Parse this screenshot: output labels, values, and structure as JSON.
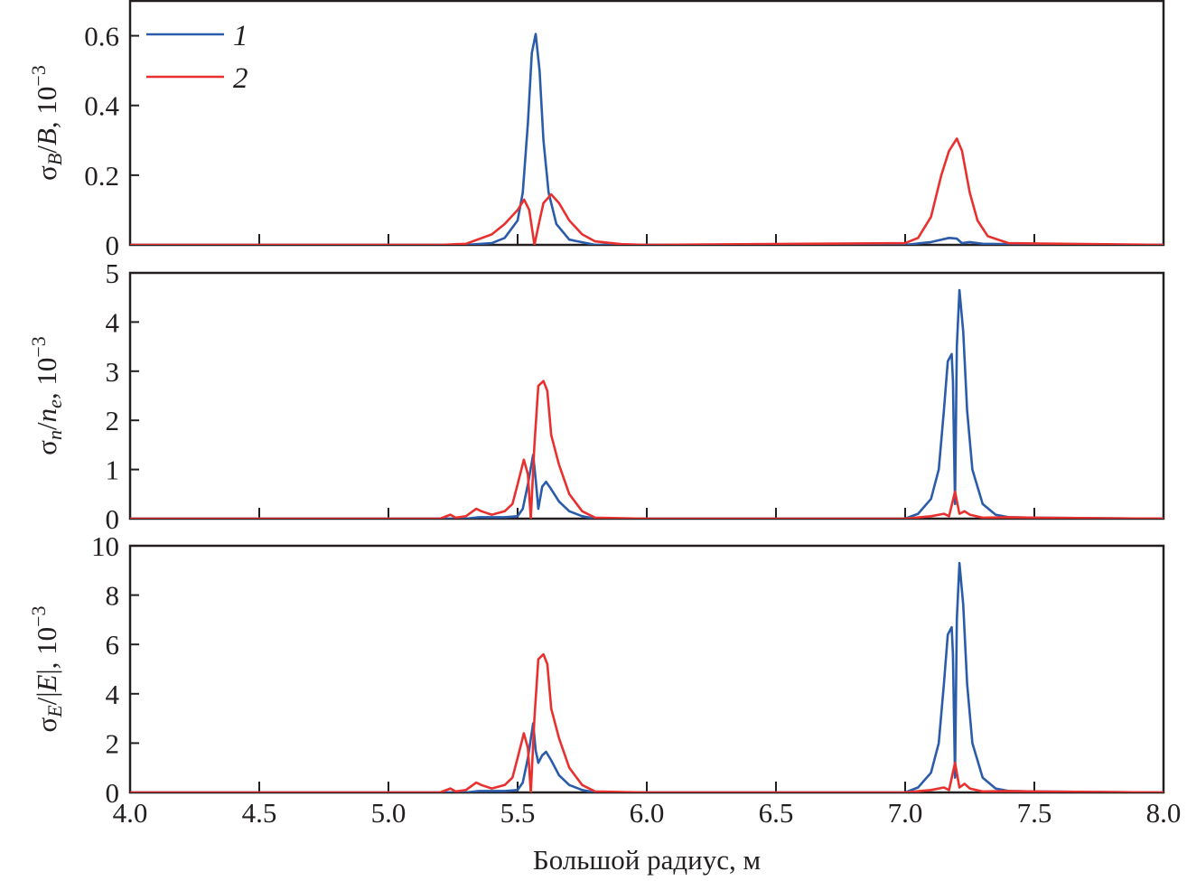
{
  "chart_data": {
    "type": "line",
    "xlabel": "Большой радиус, м",
    "xlim": [
      4.0,
      8.0
    ],
    "xticks": [
      "4.0",
      "4.5",
      "5.0",
      "5.5",
      "6.0",
      "6.5",
      "7.0",
      "7.5",
      "8.0"
    ],
    "legend": {
      "placement": "top-left",
      "entries": [
        {
          "label": "1",
          "color": "#2a5caa"
        },
        {
          "label": "2",
          "color": "#e8312f"
        }
      ]
    },
    "panels": [
      {
        "ylabel_parts": [
          {
            "t": "σ"
          },
          {
            "t": "B",
            "s": "sub-italic"
          },
          {
            "t": "/"
          },
          {
            "t": "B",
            "s": "italic"
          },
          {
            "t": ", 10"
          },
          {
            "t": "−3",
            "s": "sup"
          }
        ],
        "ylim": [
          0,
          0.7
        ],
        "yticks": [
          "0",
          "0.2",
          "0.4",
          "0.6"
        ],
        "series": [
          {
            "name": "1",
            "color": "#2a5caa",
            "x": [
              4.0,
              5.3,
              5.4,
              5.45,
              5.5,
              5.52,
              5.54,
              5.555,
              5.57,
              5.585,
              5.6,
              5.62,
              5.65,
              5.7,
              5.8,
              7.0,
              7.1,
              7.17,
              7.2,
              7.22,
              7.25,
              7.3,
              7.4,
              8.0
            ],
            "y": [
              0,
              0,
              0.005,
              0.02,
              0.07,
              0.15,
              0.35,
              0.55,
              0.605,
              0.5,
              0.3,
              0.15,
              0.06,
              0.015,
              0,
              0,
              0.008,
              0.02,
              0.018,
              0.005,
              0.008,
              0.003,
              0.002,
              0
            ]
          },
          {
            "name": "2",
            "color": "#e8312f",
            "x": [
              4.0,
              5.2,
              5.3,
              5.4,
              5.45,
              5.5,
              5.525,
              5.545,
              5.565,
              5.585,
              5.6,
              5.63,
              5.66,
              5.7,
              5.75,
              5.8,
              5.9,
              6.0,
              7.0,
              7.05,
              7.1,
              7.14,
              7.17,
              7.2,
              7.22,
              7.25,
              7.28,
              7.32,
              7.4,
              8.0
            ],
            "y": [
              0,
              0,
              0.003,
              0.03,
              0.06,
              0.1,
              0.13,
              0.1,
              0.0,
              0.07,
              0.12,
              0.145,
              0.12,
              0.07,
              0.03,
              0.01,
              0.002,
              0,
              0.005,
              0.02,
              0.08,
              0.2,
              0.27,
              0.305,
              0.27,
              0.15,
              0.07,
              0.025,
              0.005,
              0
            ]
          }
        ]
      },
      {
        "ylabel_parts": [
          {
            "t": "σ"
          },
          {
            "t": "n",
            "s": "sub-italic"
          },
          {
            "t": "/"
          },
          {
            "t": "n",
            "s": "italic"
          },
          {
            "t": "e",
            "s": "sub-italic"
          },
          {
            "t": ", 10"
          },
          {
            "t": "−3",
            "s": "sup"
          }
        ],
        "ylim": [
          0,
          5
        ],
        "yticks": [
          "0",
          "1",
          "2",
          "3",
          "4",
          "5"
        ],
        "series": [
          {
            "name": "1",
            "color": "#2a5caa",
            "x": [
              4.0,
              5.3,
              5.35,
              5.45,
              5.5,
              5.52,
              5.54,
              5.56,
              5.57,
              5.58,
              5.595,
              5.61,
              5.63,
              5.66,
              5.7,
              5.75,
              5.8,
              7.0,
              7.05,
              7.1,
              7.13,
              7.15,
              7.165,
              7.18,
              7.185,
              7.193,
              7.2,
              7.21,
              7.225,
              7.24,
              7.26,
              7.3,
              7.35,
              7.4,
              7.5,
              8.0
            ],
            "y": [
              0,
              0,
              0.03,
              0.03,
              0.05,
              0.2,
              0.7,
              1.3,
              0.8,
              0.2,
              0.65,
              0.75,
              0.6,
              0.35,
              0.15,
              0.05,
              0,
              0,
              0.1,
              0.4,
              1.0,
              2.2,
              3.2,
              3.35,
              2.8,
              0.3,
              3.5,
              4.65,
              3.8,
              2.2,
              1.0,
              0.3,
              0.08,
              0.03,
              0.02,
              0
            ]
          },
          {
            "name": "2",
            "color": "#e8312f",
            "x": [
              4.0,
              5.2,
              5.24,
              5.26,
              5.3,
              5.34,
              5.36,
              5.4,
              5.45,
              5.48,
              5.5,
              5.524,
              5.54,
              5.551,
              5.565,
              5.58,
              5.6,
              5.615,
              5.63,
              5.66,
              5.7,
              5.75,
              5.8,
              6.0,
              7.0,
              7.1,
              7.15,
              7.17,
              7.193,
              7.21,
              7.23,
              7.25,
              7.3,
              7.4,
              7.5,
              8.0
            ],
            "y": [
              0,
              0,
              0.08,
              0.02,
              0.05,
              0.2,
              0.15,
              0.08,
              0.15,
              0.3,
              0.7,
              1.2,
              0.9,
              0.0,
              1.5,
              2.7,
              2.8,
              2.6,
              1.7,
              1.1,
              0.5,
              0.15,
              0.02,
              0,
              0,
              0.05,
              0.1,
              0.05,
              0.55,
              0.1,
              0.15,
              0.08,
              0.02,
              0.03,
              0.02,
              0
            ]
          }
        ]
      },
      {
        "ylabel_parts": [
          {
            "t": "σ"
          },
          {
            "t": "E",
            "s": "sub-italic"
          },
          {
            "t": "/|"
          },
          {
            "t": "E",
            "s": "italic"
          },
          {
            "t": "|, 10"
          },
          {
            "t": "−3",
            "s": "sup"
          }
        ],
        "ylim": [
          0,
          10
        ],
        "yticks": [
          "0",
          "2",
          "4",
          "6",
          "8",
          "10"
        ],
        "series": [
          {
            "name": "1",
            "color": "#2a5caa",
            "x": [
              4.0,
              5.3,
              5.35,
              5.45,
              5.5,
              5.52,
              5.54,
              5.56,
              5.57,
              5.58,
              5.595,
              5.61,
              5.63,
              5.66,
              5.7,
              5.75,
              5.8,
              7.0,
              7.05,
              7.1,
              7.13,
              7.15,
              7.165,
              7.18,
              7.185,
              7.193,
              7.2,
              7.21,
              7.225,
              7.24,
              7.26,
              7.3,
              7.35,
              7.4,
              7.5,
              8.0
            ],
            "y": [
              0,
              0,
              0.06,
              0.06,
              0.1,
              0.4,
              1.4,
              2.8,
              1.7,
              1.2,
              1.5,
              1.65,
              1.3,
              0.7,
              0.3,
              0.1,
              0,
              0,
              0.2,
              0.8,
              2.0,
              4.4,
              6.4,
              6.7,
              5.6,
              0.6,
              7.0,
              9.3,
              7.6,
              4.4,
              2.0,
              0.6,
              0.16,
              0.06,
              0.04,
              0
            ]
          },
          {
            "name": "2",
            "color": "#e8312f",
            "x": [
              4.0,
              5.2,
              5.24,
              5.26,
              5.3,
              5.34,
              5.36,
              5.4,
              5.45,
              5.48,
              5.5,
              5.524,
              5.54,
              5.551,
              5.565,
              5.58,
              5.6,
              5.615,
              5.63,
              5.66,
              5.7,
              5.75,
              5.8,
              6.0,
              7.0,
              7.1,
              7.15,
              7.17,
              7.193,
              7.21,
              7.23,
              7.25,
              7.3,
              7.4,
              7.5,
              8.0
            ],
            "y": [
              0,
              0,
              0.16,
              0.04,
              0.1,
              0.4,
              0.3,
              0.16,
              0.3,
              0.6,
              1.4,
              2.4,
              1.8,
              0.0,
              3.0,
              5.4,
              5.6,
              5.2,
              3.4,
              2.2,
              1.0,
              0.3,
              0.04,
              0,
              0,
              0.1,
              0.2,
              0.1,
              1.2,
              0.2,
              0.35,
              0.16,
              0.04,
              0.06,
              0.04,
              0
            ]
          }
        ]
      }
    ]
  }
}
